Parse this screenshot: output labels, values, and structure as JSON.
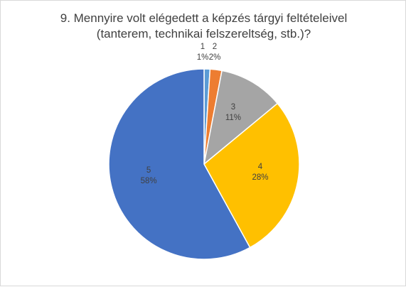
{
  "chart_data": {
    "type": "pie",
    "title_lines": [
      "9. Mennyire volt elégedett  a képzés tárgyi feltételeivel",
      "(tanterem, technikai felszereltség, stb.)?"
    ],
    "categories": [
      "1",
      "2",
      "3",
      "4",
      "5"
    ],
    "values": [
      1,
      2,
      11,
      28,
      58
    ],
    "value_labels": [
      "1%",
      "2%",
      "11%",
      "28%",
      "58%"
    ],
    "colors": [
      "#5b9bd5",
      "#ed7d31",
      "#a5a5a5",
      "#ffc000",
      "#4472c4"
    ],
    "start_angle": "12 o'clock",
    "direction": "clockwise",
    "legend": "none",
    "label_placement": "inside slices, above for small slices"
  }
}
